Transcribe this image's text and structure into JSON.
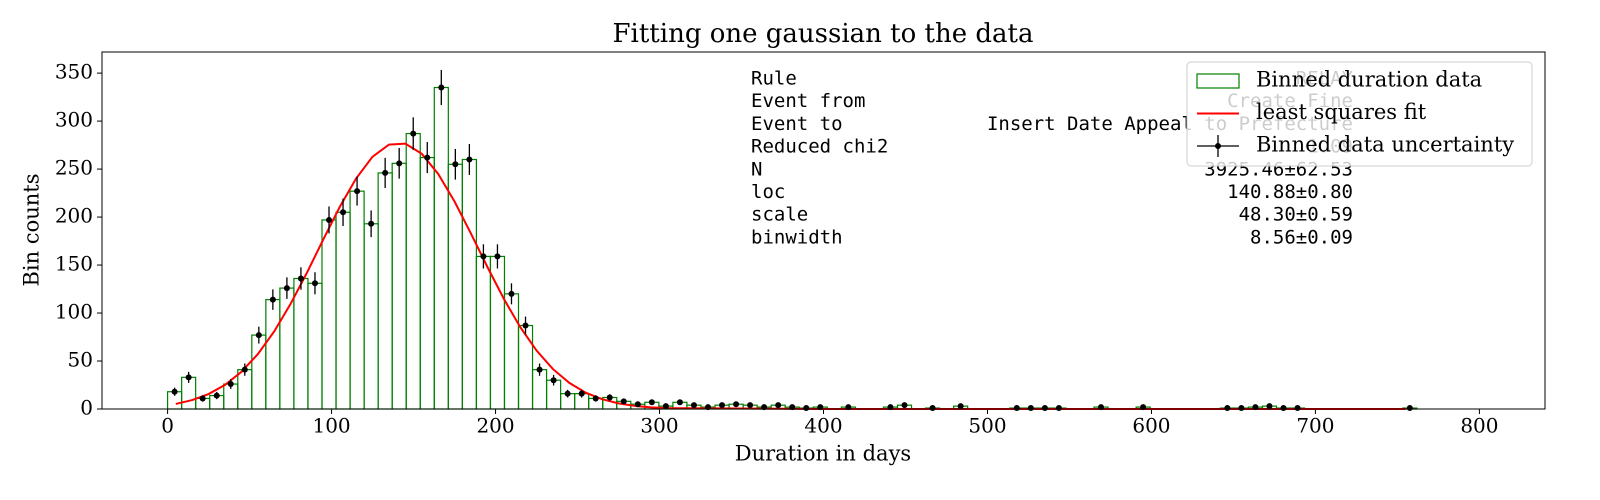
{
  "chart_data": {
    "type": "histogram",
    "title": "Fitting one gaussian to the data",
    "x_label": "Duration in days",
    "y_label": "Bin counts",
    "bins": [
      0,
      8.56,
      17.12,
      25.68,
      34.24,
      42.8,
      51.36,
      59.92,
      68.48,
      77.04,
      85.6,
      94.16,
      102.72,
      111.28,
      119.84,
      128.4,
      136.96,
      145.52,
      154.08,
      162.64,
      171.2,
      179.76,
      188.32,
      196.88,
      205.44,
      214,
      222.56,
      231.12,
      239.68,
      248.24,
      256.8,
      265.36,
      273.92,
      282.48,
      291.04,
      299.6,
      308.16,
      316.72,
      325.28,
      333.84,
      342.4,
      350.96,
      359.52,
      368.08,
      376.64,
      385.2,
      393.76,
      402.32,
      410.88,
      419.44,
      428,
      436.56,
      445.12,
      453.68,
      462.24,
      470.8,
      479.36,
      487.92,
      496.48,
      505.04,
      513.6,
      522.16,
      530.72,
      539.28,
      547.84,
      556.4,
      564.96,
      573.52,
      582.08,
      590.64,
      599.2,
      607.76,
      616.32,
      624.88,
      633.44,
      642,
      650.56,
      659.12,
      667.68,
      676.24,
      684.8,
      693.36,
      701.92,
      710.48,
      719.04,
      727.6,
      736.16,
      744.72,
      753.28,
      761.84
    ],
    "values": [
      18,
      33,
      11,
      14,
      26,
      41,
      77,
      114,
      126,
      136,
      131,
      197,
      205,
      227,
      193,
      246,
      256,
      287,
      262,
      335,
      255,
      260,
      159,
      159,
      120,
      87,
      41,
      30,
      16,
      16,
      11,
      12,
      8,
      5,
      7,
      3,
      7,
      4,
      2,
      4,
      5,
      4,
      2,
      4,
      2,
      1,
      2,
      0,
      2,
      0,
      0,
      2,
      4,
      0,
      1,
      0,
      3,
      0,
      0,
      0,
      1,
      1,
      1,
      1,
      0,
      0,
      2,
      0,
      0,
      2,
      0,
      0,
      0,
      0,
      0,
      1,
      1,
      2,
      3,
      1,
      1,
      0,
      0,
      0,
      0,
      0,
      0,
      0,
      1
    ],
    "name": "Binned duration data",
    "color": "#008000",
    "errorbar_name": "Binned data uncertainty",
    "errorbar_color": "#000000",
    "fit": {
      "name": "least squares fit",
      "color": "#ff0000",
      "x": [
        5,
        15,
        25,
        35,
        45,
        55,
        65,
        75,
        85,
        95,
        105,
        115,
        125,
        135,
        145,
        155,
        165,
        175,
        185,
        195,
        205,
        215,
        225,
        235,
        245,
        255,
        265,
        275,
        285,
        295,
        305,
        400,
        500,
        600,
        700,
        755
      ],
      "values": [
        5.3,
        9.3,
        15.6,
        25.1,
        38.7,
        57.1,
        80.8,
        109.5,
        142.1,
        176.8,
        210.6,
        240.3,
        262.9,
        275.5,
        276.5,
        265.9,
        245.0,
        216.2,
        182.8,
        148.1,
        115.0,
        85.5,
        60.9,
        41.6,
        27.2,
        17.0,
        10.2,
        5.9,
        3.2,
        1.7,
        0.9,
        0,
        0,
        0,
        0,
        0
      ]
    },
    "xlim": [
      -40,
      840
    ],
    "ylim": [
      0,
      372
    ],
    "xticks": [
      0,
      100,
      200,
      300,
      400,
      500,
      600,
      700,
      800
    ],
    "yticks": [
      0,
      50,
      100,
      150,
      200,
      250,
      300,
      350
    ],
    "legend": "upper right",
    "annotation": {
      "rows": [
        [
          "Rule",
          "RELAY"
        ],
        [
          "Event from",
          "Create Fine"
        ],
        [
          "Event to",
          "Insert Date Appeal to Prefecture"
        ],
        [
          "Reduced chi2",
          "1.09"
        ],
        [
          "N",
          "3925.46±62.53"
        ],
        [
          "loc",
          "140.88±0.80"
        ],
        [
          "scale",
          "48.30±0.59"
        ],
        [
          "binwidth",
          "8.56±0.09"
        ]
      ]
    }
  }
}
